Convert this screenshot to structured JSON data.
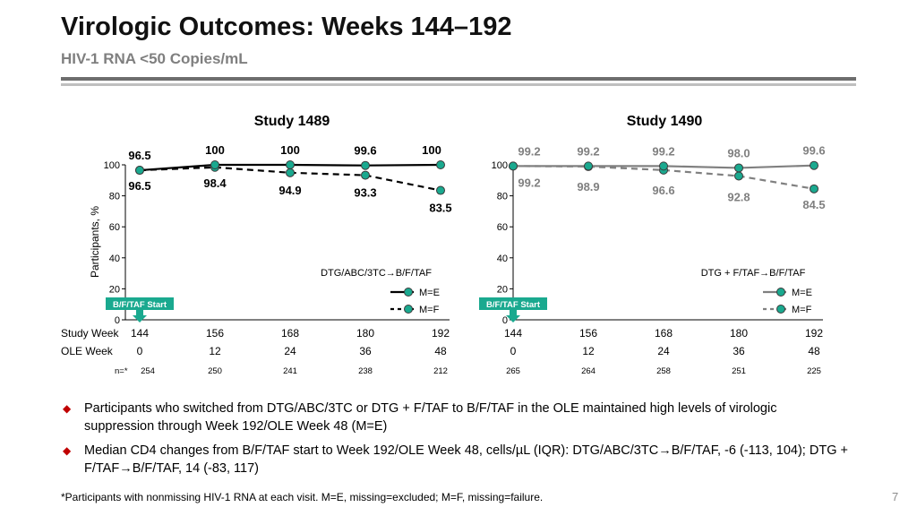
{
  "slide": {
    "title": "Virologic Outcomes: Weeks 144–192",
    "subtitle": "HIV-1 RNA <50 Copies/mL",
    "page_number": "7",
    "footnote": "*Participants with nonmissing HIV-1 RNA at each visit. M=E, missing=excluded; M=F, missing=failure.",
    "bullets": [
      "Participants who switched from DTG/ABC/3TC or DTG + F/TAF to B/F/TAF in the OLE maintained high levels of virologic suppression through Week 192/OLE Week 48 (M=E)",
      "Median CD4 changes from B/F/TAF start to Week 192/OLE Week 48, cells/µL (IQR): DTG/ABC/3TC→B/F/TAF, -6 (-113, 104); DTG + F/TAF→B/F/TAF, 14 (-83, 117)"
    ]
  },
  "shared": {
    "ylabel": "Participants, %",
    "row_label_study_week": "Study Week",
    "row_label_ole_week": "OLE Week",
    "n_label": "n=*",
    "start_marker_label": "B/F/TAF Start",
    "start_marker_color": "#1aa98f",
    "marker_color": "#1aa98f"
  },
  "chart_data": [
    {
      "type": "line",
      "title": "Study 1489",
      "arm_label": "DTG/ABC/3TC→B/F/TAF",
      "x": [
        144,
        156,
        168,
        180,
        192
      ],
      "x_tick_labels": [
        "144",
        "156",
        "168",
        "180",
        "192"
      ],
      "ole_week_labels": [
        "0",
        "12",
        "24",
        "36",
        "48"
      ],
      "n_values": [
        "254",
        "250",
        "241",
        "238",
        "212"
      ],
      "ylim": [
        0,
        100
      ],
      "y_ticks": [
        "0",
        "20",
        "40",
        "60",
        "80",
        "100"
      ],
      "legend_position": "bottom-right",
      "series": [
        {
          "name": "M=E",
          "style": "solid",
          "color": "#000000",
          "values": [
            96.5,
            100,
            100,
            99.6,
            100
          ],
          "labels": [
            "96.5",
            "100",
            "100",
            "99.6",
            "100"
          ]
        },
        {
          "name": "M=F",
          "style": "dashed",
          "color": "#000000",
          "values": [
            96.5,
            98.4,
            94.9,
            93.3,
            83.5
          ],
          "labels": [
            "96.5",
            "98.4",
            "94.9",
            "93.3",
            "83.5"
          ]
        }
      ]
    },
    {
      "type": "line",
      "title": "Study 1490",
      "arm_label": "DTG + F/TAF→B/F/TAF",
      "x": [
        144,
        156,
        168,
        180,
        192
      ],
      "x_tick_labels": [
        "144",
        "156",
        "168",
        "180",
        "192"
      ],
      "ole_week_labels": [
        "0",
        "12",
        "24",
        "36",
        "48"
      ],
      "n_values": [
        "265",
        "264",
        "258",
        "251",
        "225"
      ],
      "ylim": [
        0,
        100
      ],
      "y_ticks": [
        "0",
        "20",
        "40",
        "60",
        "80",
        "100"
      ],
      "legend_position": "bottom-right",
      "series": [
        {
          "name": "M=E",
          "style": "solid",
          "color": "#808080",
          "values": [
            99.2,
            99.2,
            99.2,
            98.0,
            99.6
          ],
          "labels": [
            "99.2",
            "99.2",
            "99.2",
            "98.0",
            "99.6"
          ]
        },
        {
          "name": "M=F",
          "style": "dashed",
          "color": "#808080",
          "values": [
            99.2,
            98.9,
            96.6,
            92.8,
            84.5
          ],
          "labels": [
            "99.2",
            "98.9",
            "96.6",
            "92.8",
            "84.5"
          ]
        }
      ]
    }
  ]
}
